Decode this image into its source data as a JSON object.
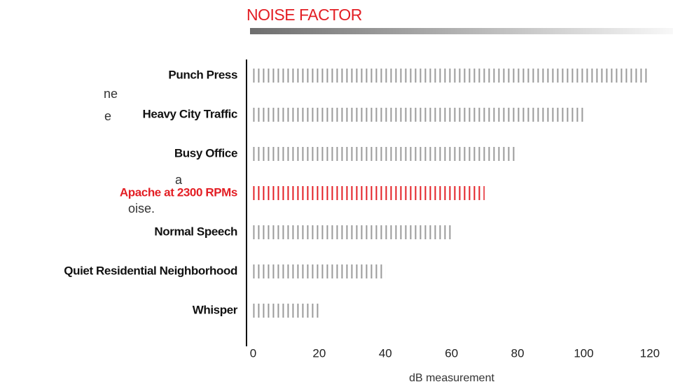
{
  "side_text": [
    "ne",
    "e",
    "a",
    "oise."
  ],
  "chart_data": {
    "type": "bar",
    "orientation": "horizontal",
    "title": "NOISE FACTOR",
    "categories": [
      "Punch Press",
      "Heavy City Traffic",
      "Busy Office",
      "Apache at 2300 RPMs",
      "Normal Speech",
      "Quiet Residential Neighborhood",
      "Whisper"
    ],
    "values": [
      120,
      100,
      80,
      70,
      60,
      40,
      20
    ],
    "colors": [
      "#9a9a9a",
      "#9a9a9a",
      "#9a9a9a",
      "#e31e24",
      "#9a9a9a",
      "#9a9a9a",
      "#9a9a9a"
    ],
    "xlabel": "dB measurement",
    "xlim": [
      -2,
      127
    ],
    "xticks": [
      0,
      20,
      40,
      60,
      80,
      100,
      120
    ],
    "grid": false
  }
}
